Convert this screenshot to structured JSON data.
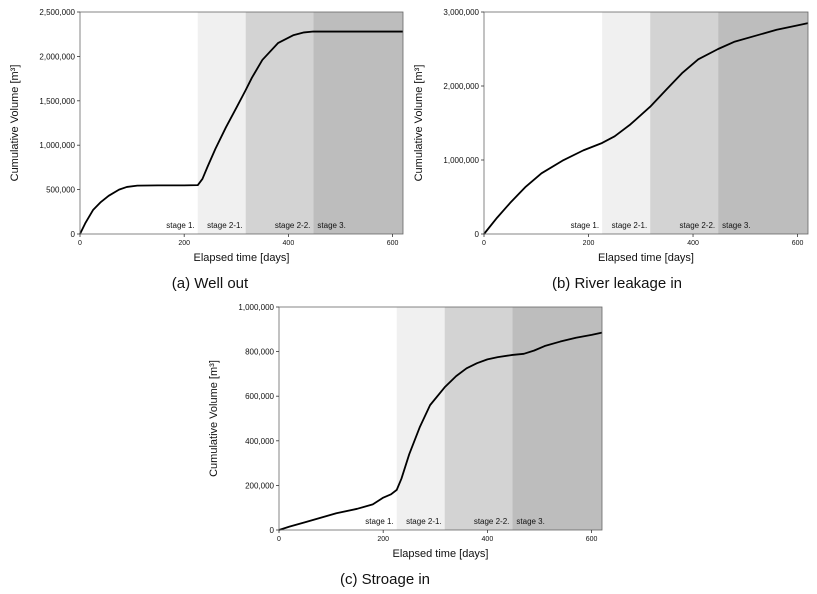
{
  "chart_data": [
    {
      "type": "line",
      "caption": "(a) Well out",
      "xlabel": "Elapsed time [days]",
      "ylabel": "Cumulative Volume [m³]",
      "xlim": [
        0,
        620
      ],
      "ylim": [
        0,
        2500000
      ],
      "xticks": [
        0,
        200,
        400,
        600
      ],
      "xtick_labels": [
        "0",
        "200",
        "400",
        "600"
      ],
      "yticks": [
        0,
        500000,
        1000000,
        1500000,
        2000000,
        2500000
      ],
      "ytick_labels": [
        "0",
        "500,000",
        "1,000,000",
        "1,500,000",
        "2,000,000",
        "2,500,000"
      ],
      "stages": [
        {
          "label": "stage 1.",
          "x_start": 0,
          "x_end": 226,
          "color": "#ffffff"
        },
        {
          "label": "stage 2-1.",
          "x_start": 226,
          "x_end": 318,
          "color": "#f0f0f0"
        },
        {
          "label": "stage 2-2.",
          "x_start": 318,
          "x_end": 448,
          "color": "#d3d3d3"
        },
        {
          "label": "stage 3.",
          "x_start": 448,
          "x_end": 620,
          "color": "#bdbdbd"
        }
      ],
      "series": [
        {
          "x": [
            0,
            10,
            25,
            40,
            55,
            75,
            90,
            110,
            150,
            200,
            226,
            235,
            245,
            260,
            280,
            300,
            318,
            330,
            350,
            380,
            410,
            430,
            448,
            470,
            520,
            580,
            620
          ],
          "y": [
            0,
            120000,
            270000,
            360000,
            430000,
            500000,
            530000,
            545000,
            548000,
            548000,
            550000,
            620000,
            760000,
            960000,
            1200000,
            1420000,
            1620000,
            1760000,
            1960000,
            2150000,
            2240000,
            2270000,
            2280000,
            2280000,
            2280000,
            2280000,
            2280000
          ]
        }
      ]
    },
    {
      "type": "line",
      "caption": "(b) River leakage in",
      "xlabel": "Elapsed time [days]",
      "ylabel": "Cumulative Volume [m³]",
      "xlim": [
        0,
        620
      ],
      "ylim": [
        0,
        3000000
      ],
      "xticks": [
        0,
        200,
        400,
        600
      ],
      "xtick_labels": [
        "0",
        "200",
        "400",
        "600"
      ],
      "yticks": [
        0,
        1000000,
        2000000,
        3000000
      ],
      "ytick_labels": [
        "0",
        "1,000,000",
        "2,000,000",
        "3,000,000"
      ],
      "stages": [
        {
          "label": "stage 1.",
          "x_start": 0,
          "x_end": 226,
          "color": "#ffffff"
        },
        {
          "label": "stage 2-1.",
          "x_start": 226,
          "x_end": 318,
          "color": "#f0f0f0"
        },
        {
          "label": "stage 2-2.",
          "x_start": 318,
          "x_end": 448,
          "color": "#d3d3d3"
        },
        {
          "label": "stage 3.",
          "x_start": 448,
          "x_end": 620,
          "color": "#bdbdbd"
        }
      ],
      "series": [
        {
          "x": [
            0,
            25,
            50,
            80,
            110,
            150,
            190,
            226,
            250,
            280,
            318,
            350,
            380,
            410,
            448,
            480,
            520,
            560,
            600,
            620
          ],
          "y": [
            0,
            220000,
            420000,
            640000,
            820000,
            990000,
            1130000,
            1230000,
            1320000,
            1480000,
            1720000,
            1960000,
            2180000,
            2360000,
            2500000,
            2600000,
            2680000,
            2760000,
            2820000,
            2850000
          ]
        }
      ]
    },
    {
      "type": "line",
      "caption": "(c) Stroage in",
      "xlabel": "Elapsed time [days]",
      "ylabel": "Cumulative Volume [m³]",
      "xlim": [
        0,
        620
      ],
      "ylim": [
        0,
        1000000
      ],
      "xticks": [
        0,
        200,
        400,
        600
      ],
      "xtick_labels": [
        "0",
        "200",
        "400",
        "600"
      ],
      "yticks": [
        0,
        200000,
        400000,
        600000,
        800000,
        1000000
      ],
      "ytick_labels": [
        "0",
        "200,000",
        "400,000",
        "600,000",
        "800,000",
        "1,000,000"
      ],
      "stages": [
        {
          "label": "stage 1.",
          "x_start": 0,
          "x_end": 226,
          "color": "#ffffff"
        },
        {
          "label": "stage 2-1.",
          "x_start": 226,
          "x_end": 318,
          "color": "#f0f0f0"
        },
        {
          "label": "stage 2-2.",
          "x_start": 318,
          "x_end": 448,
          "color": "#d3d3d3"
        },
        {
          "label": "stage 3.",
          "x_start": 448,
          "x_end": 620,
          "color": "#bdbdbd"
        }
      ],
      "series": [
        {
          "x": [
            0,
            20,
            50,
            80,
            110,
            150,
            180,
            200,
            215,
            226,
            235,
            250,
            270,
            290,
            318,
            340,
            360,
            380,
            400,
            420,
            448,
            470,
            490,
            510,
            540,
            570,
            600,
            620
          ],
          "y": [
            0,
            15000,
            35000,
            55000,
            75000,
            95000,
            115000,
            145000,
            160000,
            180000,
            230000,
            340000,
            460000,
            560000,
            640000,
            690000,
            725000,
            748000,
            765000,
            775000,
            785000,
            790000,
            805000,
            825000,
            845000,
            862000,
            875000,
            885000
          ]
        }
      ]
    }
  ]
}
